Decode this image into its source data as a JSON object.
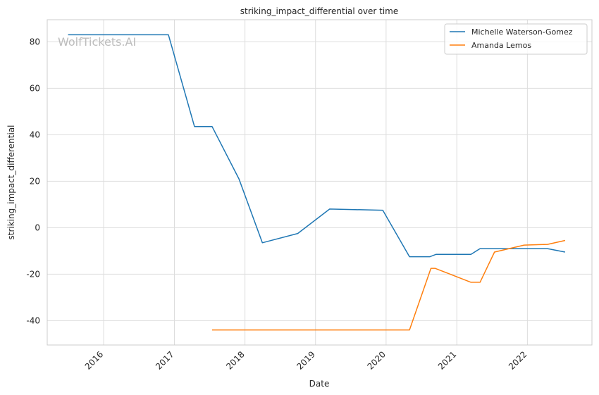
{
  "chart_data": {
    "type": "line",
    "title": "striking_impact_differential over time",
    "xlabel": "Date",
    "ylabel": "striking_impact_differential",
    "watermark": "WolfTickets.AI",
    "xlim": [
      "2015-03-15",
      "2022-12-01"
    ],
    "ylim": [
      -50.5,
      89.5
    ],
    "x_ticks": [
      "2016",
      "2017",
      "2018",
      "2019",
      "2020",
      "2021",
      "2022"
    ],
    "y_ticks": [
      -40,
      -20,
      0,
      20,
      40,
      60,
      80
    ],
    "grid": true,
    "legend_position": "top-right",
    "series": [
      {
        "name": "Michelle Waterson-Gomez",
        "color": "#1f77b4",
        "x": [
          "2015-07-01",
          "2016-12-01",
          "2017-04-15",
          "2017-07-15",
          "2017-12-01",
          "2018-04-01",
          "2018-10-01",
          "2019-03-15",
          "2019-12-15",
          "2020-05-01",
          "2020-08-15",
          "2020-09-15",
          "2021-03-15",
          "2021-05-01",
          "2021-11-01",
          "2022-04-15",
          "2022-07-15"
        ],
        "y": [
          83,
          83,
          43.5,
          43.5,
          21,
          -6.5,
          -2.5,
          8,
          7.5,
          -12.5,
          -12.5,
          -11.5,
          -11.5,
          -9,
          -9,
          -9,
          -10.5
        ]
      },
      {
        "name": "Amanda Lemos",
        "color": "#ff7f0e",
        "x": [
          "2017-07-15",
          "2020-05-01",
          "2020-08-20",
          "2020-09-10",
          "2021-03-15",
          "2021-05-01",
          "2021-07-15",
          "2021-12-15",
          "2022-04-15",
          "2022-07-15"
        ],
        "y": [
          -44,
          -44,
          -17.5,
          -17.5,
          -23.5,
          -23.5,
          -10.5,
          -7.5,
          -7.2,
          -5.5
        ]
      }
    ]
  }
}
